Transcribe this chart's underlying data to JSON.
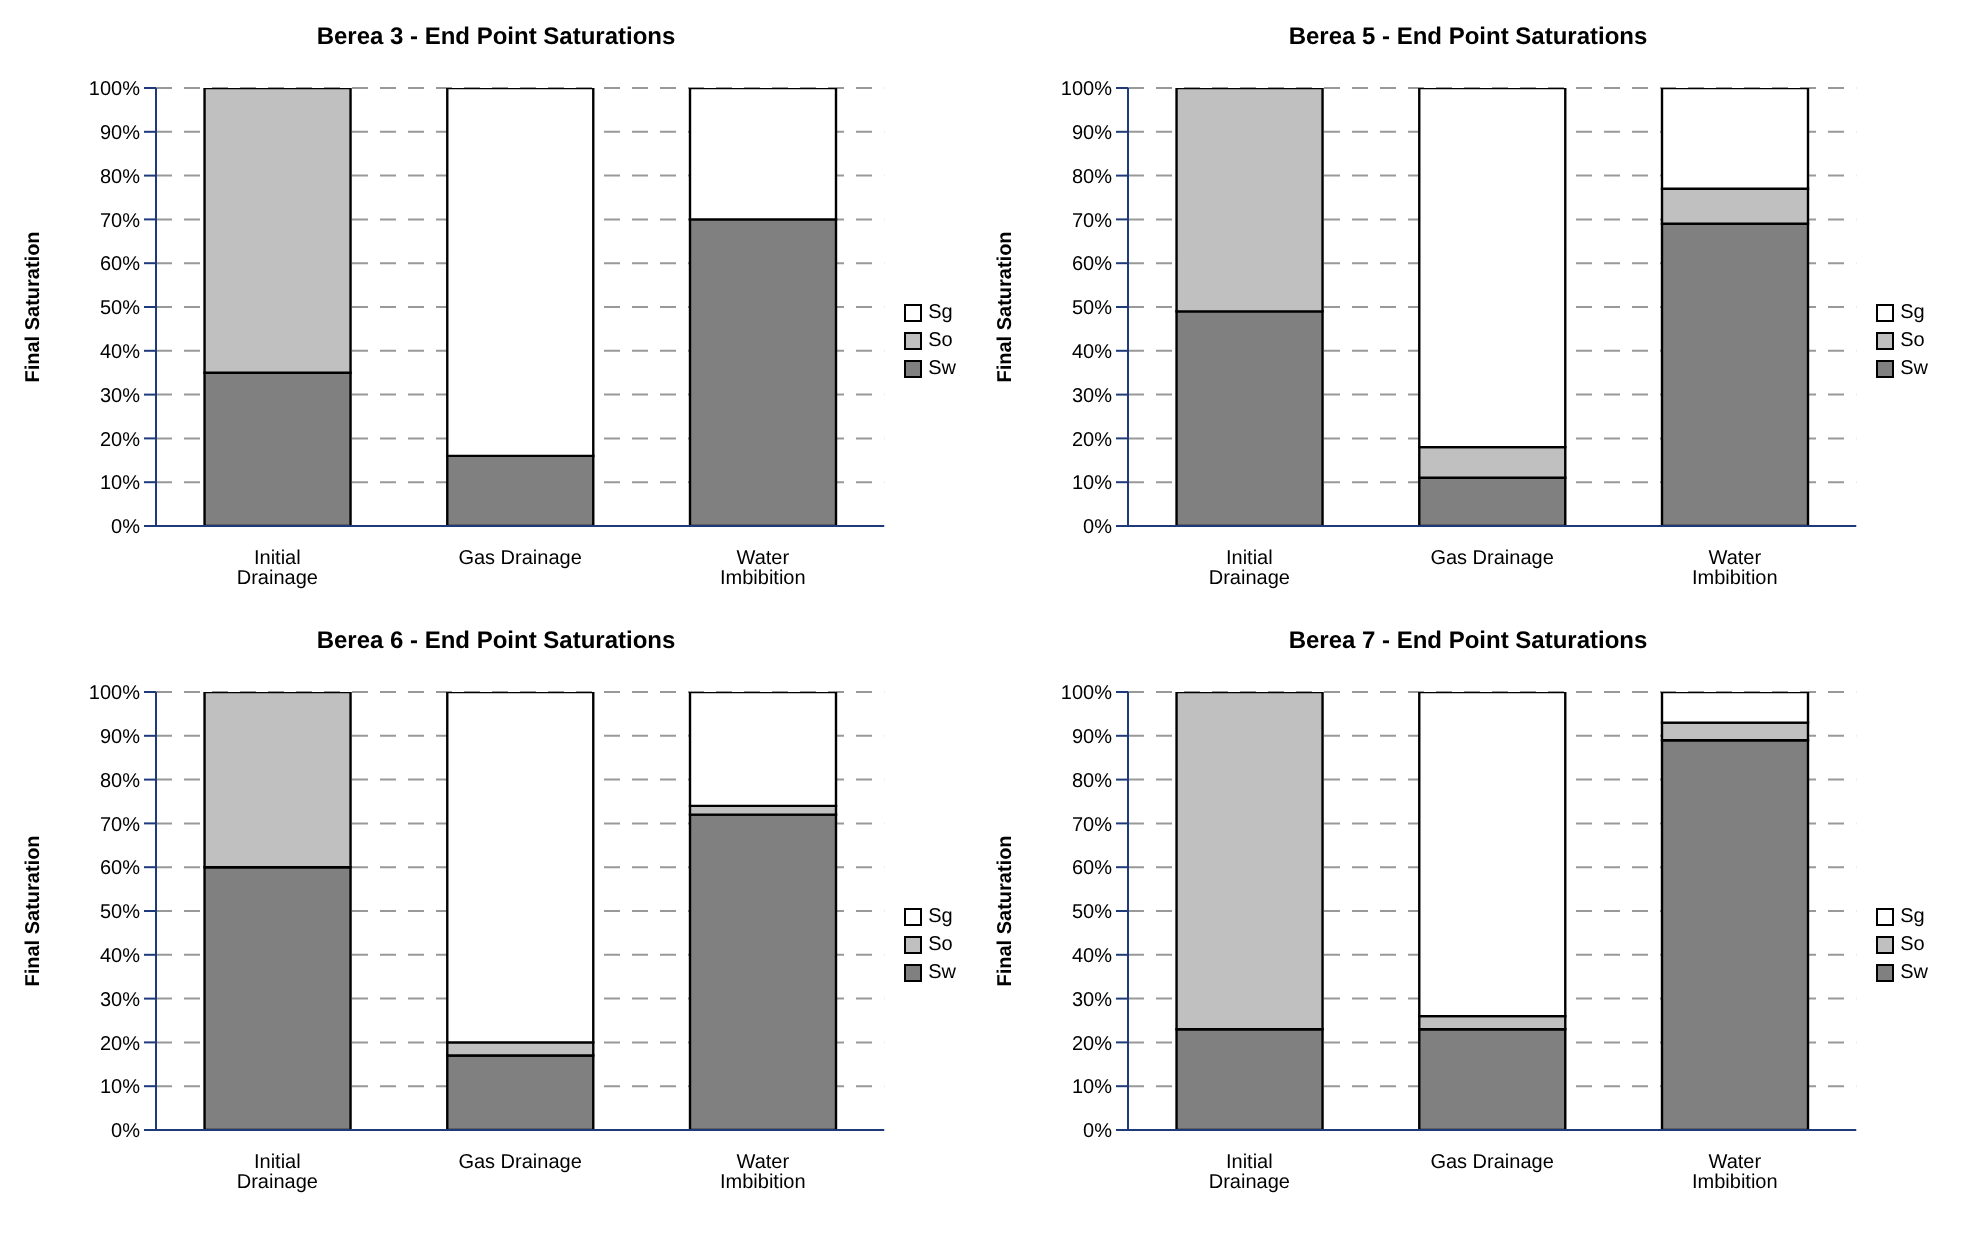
{
  "chart_data": [
    {
      "type": "bar",
      "title": "Berea 3 - End Point Saturations",
      "ylabel": "Final Saturation",
      "categories": [
        "Initial Drainage",
        "Gas Drainage",
        "Water Imbibition"
      ],
      "stacked": true,
      "series": [
        {
          "name": "Sw",
          "color": "#808080",
          "values": [
            35,
            16,
            70
          ]
        },
        {
          "name": "So",
          "color": "#c0c0c0",
          "values": [
            65,
            0,
            0
          ]
        },
        {
          "name": "Sg",
          "color": "#ffffff",
          "values": [
            0,
            84,
            30
          ]
        }
      ],
      "ylim": [
        0,
        100
      ],
      "yticks": [
        {
          "value": 0,
          "label": "0%"
        },
        {
          "value": 10,
          "label": "10%"
        },
        {
          "value": 20,
          "label": "20%"
        },
        {
          "value": 30,
          "label": "30%"
        },
        {
          "value": 40,
          "label": "40%"
        },
        {
          "value": 50,
          "label": "50%"
        },
        {
          "value": 60,
          "label": "60%"
        },
        {
          "value": 70,
          "label": "70%"
        },
        {
          "value": 80,
          "label": "80%"
        },
        {
          "value": 90,
          "label": "90%"
        },
        {
          "value": 100,
          "label": "100%"
        }
      ],
      "grid": "y",
      "legend": "right"
    },
    {
      "type": "bar",
      "title": "Berea 5  - End Point Saturations",
      "ylabel": "Final Saturation",
      "categories": [
        "Initial Drainage",
        "Gas Drainage",
        "Water Imbibition"
      ],
      "stacked": true,
      "series": [
        {
          "name": "Sw",
          "color": "#808080",
          "values": [
            49,
            11,
            69
          ]
        },
        {
          "name": "So",
          "color": "#c0c0c0",
          "values": [
            51,
            7,
            8
          ]
        },
        {
          "name": "Sg",
          "color": "#ffffff",
          "values": [
            0,
            82,
            23
          ]
        }
      ],
      "ylim": [
        0,
        100
      ],
      "yticks": [
        {
          "value": 0,
          "label": "0%"
        },
        {
          "value": 10,
          "label": "10%"
        },
        {
          "value": 20,
          "label": "20%"
        },
        {
          "value": 30,
          "label": "30%"
        },
        {
          "value": 40,
          "label": "40%"
        },
        {
          "value": 50,
          "label": "50%"
        },
        {
          "value": 60,
          "label": "60%"
        },
        {
          "value": 70,
          "label": "70%"
        },
        {
          "value": 80,
          "label": "80%"
        },
        {
          "value": 90,
          "label": "90%"
        },
        {
          "value": 100,
          "label": "100%"
        }
      ],
      "grid": "y",
      "legend": "right"
    },
    {
      "type": "bar",
      "title": "Berea 6 - End Point Saturations",
      "ylabel": "Final Saturation",
      "categories": [
        "Initial Drainage",
        "Gas Drainage",
        "Water Imbibition"
      ],
      "stacked": true,
      "series": [
        {
          "name": "Sw",
          "color": "#808080",
          "values": [
            60,
            17,
            72
          ]
        },
        {
          "name": "So",
          "color": "#c0c0c0",
          "values": [
            40,
            3,
            2
          ]
        },
        {
          "name": "Sg",
          "color": "#ffffff",
          "values": [
            0,
            80,
            26
          ]
        }
      ],
      "ylim": [
        0,
        100
      ],
      "yticks": [
        {
          "value": 0,
          "label": "0%"
        },
        {
          "value": 10,
          "label": "10%"
        },
        {
          "value": 20,
          "label": "20%"
        },
        {
          "value": 30,
          "label": "30%"
        },
        {
          "value": 40,
          "label": "40%"
        },
        {
          "value": 50,
          "label": "50%"
        },
        {
          "value": 60,
          "label": "60%"
        },
        {
          "value": 70,
          "label": "70%"
        },
        {
          "value": 80,
          "label": "80%"
        },
        {
          "value": 90,
          "label": "90%"
        },
        {
          "value": 100,
          "label": "100%"
        }
      ],
      "grid": "y",
      "legend": "right"
    },
    {
      "type": "bar",
      "title": "Berea 7 - End Point Saturations",
      "ylabel": "Final Saturation",
      "categories": [
        "Initial Drainage",
        "Gas Drainage",
        "Water Imbibition"
      ],
      "stacked": true,
      "series": [
        {
          "name": "Sw",
          "color": "#808080",
          "values": [
            23,
            23,
            89
          ]
        },
        {
          "name": "So",
          "color": "#c0c0c0",
          "values": [
            77,
            3,
            4
          ]
        },
        {
          "name": "Sg",
          "color": "#ffffff",
          "values": [
            0,
            74,
            7
          ]
        }
      ],
      "ylim": [
        0,
        100
      ],
      "yticks": [
        {
          "value": 0,
          "label": "0%"
        },
        {
          "value": 10,
          "label": "10%"
        },
        {
          "value": 20,
          "label": "20%"
        },
        {
          "value": 30,
          "label": "30%"
        },
        {
          "value": 40,
          "label": "40%"
        },
        {
          "value": 50,
          "label": "50%"
        },
        {
          "value": 60,
          "label": "60%"
        },
        {
          "value": 70,
          "label": "70%"
        },
        {
          "value": 80,
          "label": "80%"
        },
        {
          "value": 90,
          "label": "90%"
        },
        {
          "value": 100,
          "label": "100%"
        }
      ],
      "grid": "y",
      "legend": "right"
    }
  ]
}
